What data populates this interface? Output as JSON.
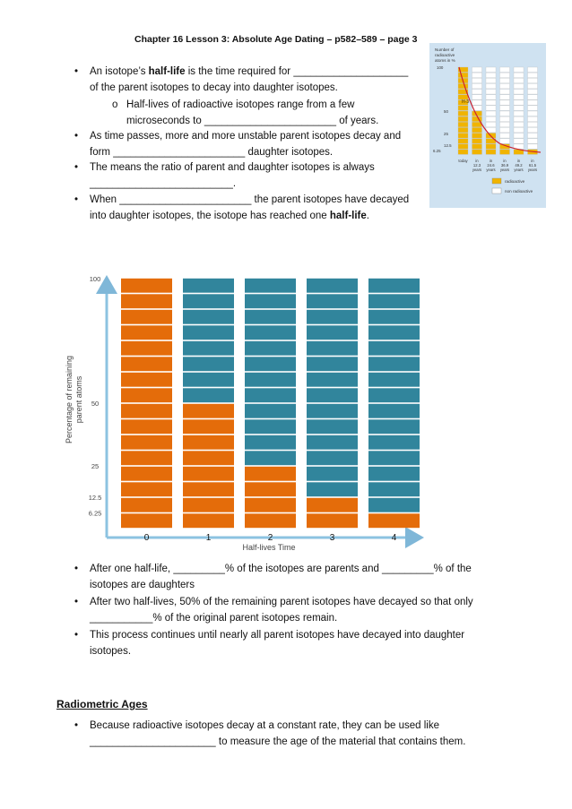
{
  "header": "Chapter 16 Lesson 3: Absolute Age Dating – p582–589 – page 3",
  "bullets_top": [
    {
      "l1_a": "An isotope’s ",
      "l1_bold": "half-life",
      "l1_b": " is the time required for ____________________",
      "l2": "of the parent isotopes to decay into daughter isotopes."
    }
  ],
  "sub_bullet": {
    "marker": "o",
    "l1": "Half-lives of radioactive isotopes range from a few",
    "l2": "microseconds to _______________________ of years."
  },
  "bullet2": {
    "l1": "As time passes, more and more unstable parent isotopes decay and",
    "l2": "form _______________________    daughter isotopes."
  },
  "bullet3": {
    "l1": "The means the ratio of parent and daughter isotopes is always",
    "l2": "_________________________."
  },
  "bullet4": {
    "l1": "When _______________________ the parent isotopes have decayed",
    "l2_a": "into daughter isotopes, the isotope has reached one ",
    "l2_bold": "half-life",
    "l2_b": "."
  },
  "inset": {
    "title_l1": "Number of",
    "title_l2": "radioactive",
    "title_l3": "atoms in %",
    "y_ticks": [
      "100",
      "50",
      "25",
      "12.5",
      "6.25"
    ],
    "bar_label": "H-3",
    "x_labels_l1": [
      "today",
      "in",
      "in",
      "in",
      "in",
      "in"
    ],
    "x_labels_l2": [
      "",
      "12.3",
      "24.6",
      "36.9",
      "49.2",
      "61.5"
    ],
    "x_labels_l3": [
      "",
      "years",
      "years",
      "years",
      "years",
      "years"
    ],
    "legend": [
      "radioactive",
      "non radioactive"
    ],
    "colors": {
      "radioactive": "#f0b400",
      "nonradioactive": "#ffffff",
      "curve": "#cc1f2f",
      "bg": "#cfe2f1"
    }
  },
  "chart_data": {
    "type": "bar",
    "title": "",
    "xlabel": "Half-lives Time",
    "ylabel_l1": "Percentage of remaining",
    "ylabel_l2": "parent atoms",
    "categories": [
      "0",
      "1",
      "2",
      "3",
      "4"
    ],
    "series": [
      {
        "name": "parent",
        "values": [
          100,
          50,
          25,
          12.5,
          6.25
        ],
        "color": "#e46c0a"
      },
      {
        "name": "daughter",
        "values": [
          0,
          50,
          75,
          87.5,
          93.75
        ],
        "color": "#31859c"
      }
    ],
    "y_tick_labels": [
      "100",
      "50",
      "25",
      "12.5",
      "6.25"
    ],
    "segments_per_bar": 16,
    "ylim": [
      0,
      100
    ]
  },
  "bullets_mid": [
    {
      "l1": "After one half-life, _________% of the isotopes are parents and _________% of the",
      "l2": "isotopes are daughters"
    },
    {
      "l1": "After two half-lives, 50% of the remaining parent isotopes have decayed so that only",
      "l2": "___________% of the original parent isotopes remain."
    },
    {
      "l1": "This process continues until nearly all parent isotopes have decayed into daughter",
      "l2": "isotopes."
    }
  ],
  "section_title": "Radiometric Ages",
  "bullet_last": {
    "l1": "Because radioactive isotopes decay at a constant rate, they can be used like",
    "l2": "______________________ to measure the age of the material that contains them."
  },
  "bullet_symbol": "•"
}
